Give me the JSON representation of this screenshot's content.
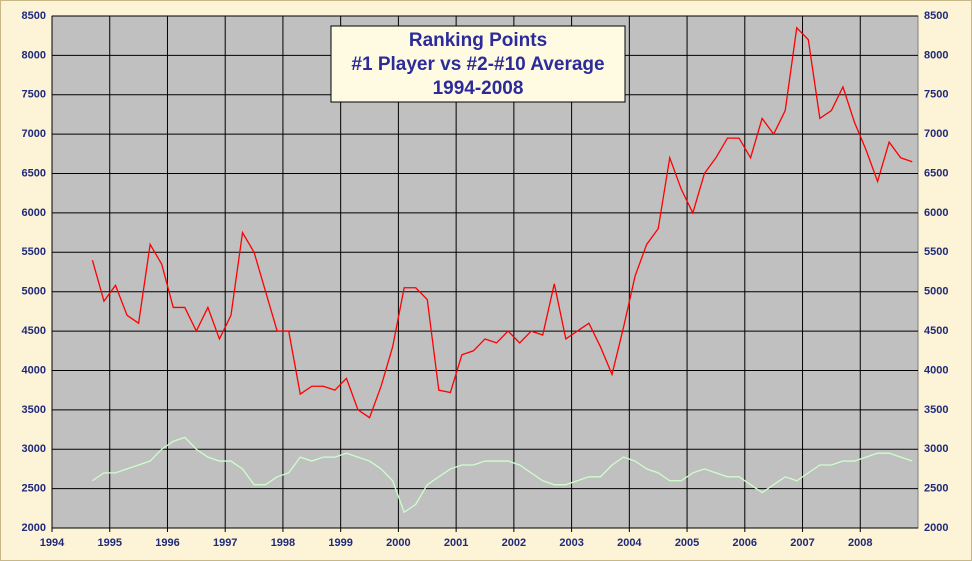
{
  "chart_data": {
    "type": "line",
    "title": [
      "Ranking Points",
      "#1 Player vs #2-#10 Average",
      "1994-2008"
    ],
    "x": [
      1994.7,
      1994.9,
      1995.1,
      1995.3,
      1995.5,
      1995.7,
      1995.9,
      1996.1,
      1996.3,
      1996.5,
      1996.7,
      1996.9,
      1997.1,
      1997.3,
      1997.5,
      1997.7,
      1997.9,
      1998.1,
      1998.3,
      1998.5,
      1998.7,
      1998.9,
      1999.1,
      1999.3,
      1999.5,
      1999.7,
      1999.9,
      2000.1,
      2000.3,
      2000.5,
      2000.7,
      2000.9,
      2001.1,
      2001.3,
      2001.5,
      2001.7,
      2001.9,
      2002.1,
      2002.3,
      2002.5,
      2002.7,
      2002.9,
      2003.1,
      2003.3,
      2003.5,
      2003.7,
      2003.9,
      2004.1,
      2004.3,
      2004.5,
      2004.7,
      2004.9,
      2005.1,
      2005.3,
      2005.5,
      2005.7,
      2005.9,
      2006.1,
      2006.3,
      2006.5,
      2006.7,
      2006.9,
      2007.1,
      2007.3,
      2007.5,
      2007.7,
      2007.9,
      2008.1,
      2008.3,
      2008.5,
      2008.7,
      2008.9
    ],
    "series": [
      {
        "color": "#ff0000",
        "values": [
          5400,
          4880,
          5080,
          4700,
          4600,
          5600,
          5350,
          4800,
          4800,
          4500,
          4800,
          4400,
          4700,
          5750,
          5500,
          5000,
          4500,
          4500,
          3700,
          3800,
          3800,
          3750,
          3900,
          3500,
          3400,
          3800,
          4300,
          5050,
          5050,
          4900,
          3750,
          3720,
          4200,
          4250,
          4400,
          4350,
          4500,
          4350,
          4500,
          4450,
          5100,
          4400,
          4500,
          4600,
          4300,
          3950,
          4550,
          5200,
          5600,
          5800,
          6700,
          6300,
          6000,
          6500,
          6700,
          6950,
          6950,
          6700,
          7200,
          7000,
          7300,
          8350,
          8200,
          7200,
          7300,
          7600,
          7150,
          6800,
          6400,
          6900,
          6700,
          6650
        ]
      },
      {
        "color": "#ccffcc",
        "values": [
          2600,
          2700,
          2700,
          2750,
          2800,
          2850,
          3000,
          3100,
          3150,
          3000,
          2900,
          2850,
          2850,
          2750,
          2550,
          2550,
          2650,
          2700,
          2900,
          2850,
          2900,
          2900,
          2950,
          2900,
          2850,
          2750,
          2600,
          2200,
          2300,
          2550,
          2650,
          2750,
          2800,
          2800,
          2850,
          2850,
          2850,
          2800,
          2700,
          2600,
          2550,
          2550,
          2600,
          2650,
          2650,
          2800,
          2900,
          2850,
          2750,
          2700,
          2600,
          2600,
          2700,
          2750,
          2700,
          2650,
          2650,
          2550,
          2450,
          2550,
          2650,
          2600,
          2700,
          2800,
          2800,
          2850,
          2850,
          2900,
          2950,
          2950,
          2900,
          2850
        ]
      }
    ],
    "xlim": [
      1994,
      2009
    ],
    "xticks": [
      1994,
      1995,
      1996,
      1997,
      1998,
      1999,
      2000,
      2001,
      2002,
      2003,
      2004,
      2005,
      2006,
      2007,
      2008
    ],
    "ylim": [
      2000,
      8500
    ],
    "yticks": [
      2000,
      2500,
      3000,
      3500,
      4000,
      4500,
      5000,
      5500,
      6000,
      6500,
      7000,
      7500,
      8000,
      8500
    ],
    "grid": true
  }
}
